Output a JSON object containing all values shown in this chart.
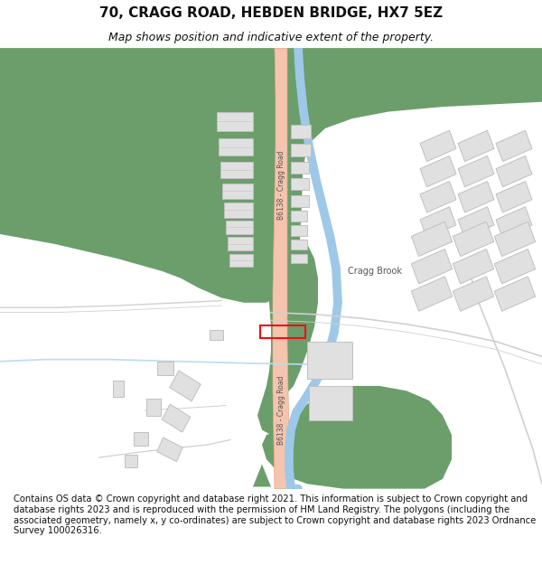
{
  "title": "70, CRAGG ROAD, HEBDEN BRIDGE, HX7 5EZ",
  "subtitle": "Map shows position and indicative extent of the property.",
  "footer": "Contains OS data © Crown copyright and database right 2021. This information is subject to Crown copyright and database rights 2023 and is reproduced with the permission of HM Land Registry. The polygons (including the associated geometry, namely x, y co-ordinates) are subject to Crown copyright and database rights 2023 Ordnance Survey 100026316.",
  "bg_color": "#ffffff",
  "map_bg": "#f0f0ee",
  "green_color": "#6b9e6b",
  "road_color": "#f5c4ae",
  "road_edge": "#e8a888",
  "brook_color": "#9ec8e8",
  "building_color": "#e0e0e0",
  "building_stroke": "#c0c0c0",
  "path_color": "#d0d0d0",
  "red_rect_color": "#ee1111",
  "title_fontsize": 11,
  "subtitle_fontsize": 9,
  "footer_fontsize": 7.2,
  "label_color": "#555555"
}
